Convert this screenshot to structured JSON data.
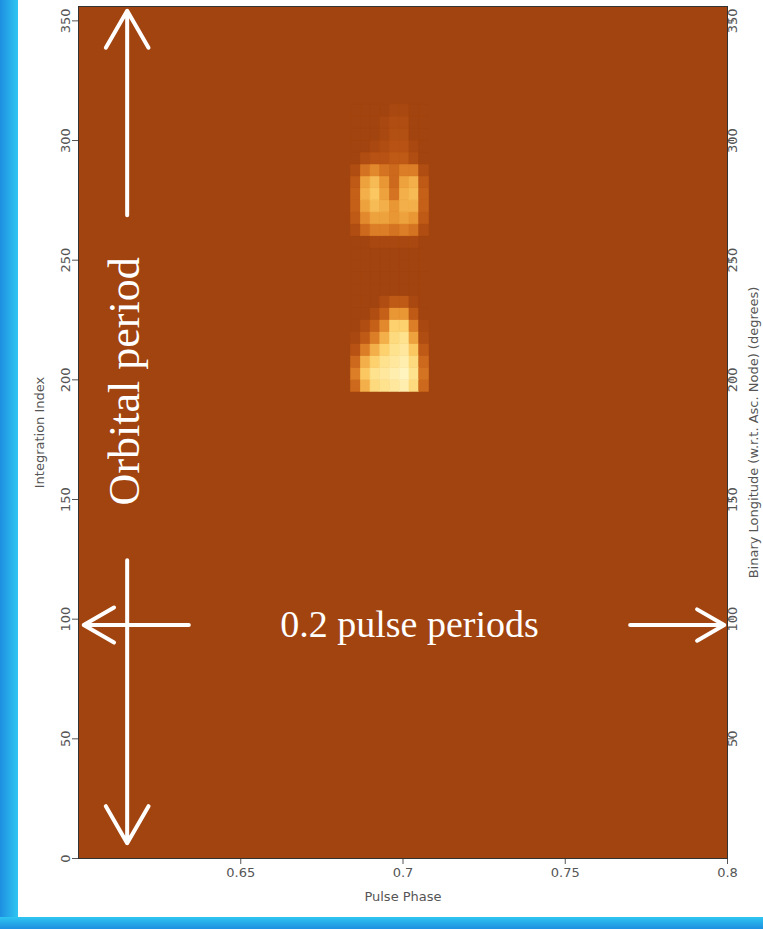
{
  "chart_data": {
    "type": "heatmap",
    "x_label": "Pulse Phase",
    "y_label": "Integration Index",
    "y2_label": "Binary Longitude (w.r.t. Asc. Node) (degrees)",
    "xlim": [
      0.6,
      0.8
    ],
    "xticks": [
      0.65,
      0.7,
      0.75,
      0.8
    ],
    "ylim": [
      0,
      356
    ],
    "yticks": [
      0,
      50,
      100,
      150,
      200,
      250,
      300,
      350
    ],
    "y2lim": [
      0,
      356
    ],
    "y2ticks": [
      50,
      100,
      150,
      200,
      250,
      300,
      350
    ],
    "x_bins": [
      0.684,
      0.687,
      0.69,
      0.693,
      0.696,
      0.699,
      0.702,
      0.705,
      0.708
    ],
    "y_bins": [
      195,
      200,
      205,
      210,
      215,
      220,
      225,
      230,
      235,
      240,
      245,
      250,
      255,
      260,
      265,
      270,
      275,
      280,
      285,
      290,
      295,
      300,
      305,
      310,
      315
    ],
    "z": [
      [
        0.3,
        0.6,
        0.8,
        0.85,
        0.9,
        0.95,
        0.8,
        0.3
      ],
      [
        0.4,
        0.7,
        0.85,
        0.9,
        0.95,
        1.0,
        0.85,
        0.35
      ],
      [
        0.3,
        0.6,
        0.75,
        0.85,
        0.9,
        0.95,
        0.8,
        0.3
      ],
      [
        0.15,
        0.4,
        0.6,
        0.75,
        0.85,
        0.9,
        0.7,
        0.2
      ],
      [
        0.05,
        0.2,
        0.4,
        0.6,
        0.8,
        0.85,
        0.55,
        0.1
      ],
      [
        0,
        0.1,
        0.25,
        0.45,
        0.75,
        0.75,
        0.4,
        0.05
      ],
      [
        0,
        0,
        0.1,
        0.25,
        0.5,
        0.5,
        0.2,
        0
      ],
      [
        0,
        0,
        0,
        0.1,
        0.2,
        0.2,
        0.05,
        0
      ],
      [
        0,
        0,
        0,
        0,
        0,
        0,
        0,
        0
      ],
      [
        0,
        0,
        0,
        0,
        0,
        0,
        0,
        0
      ],
      [
        0,
        0,
        0,
        0,
        0,
        0,
        0,
        0
      ],
      [
        0,
        0,
        0,
        0,
        0,
        0,
        0,
        0
      ],
      [
        0,
        0,
        0.05,
        0.05,
        0.05,
        0.05,
        0.05,
        0
      ],
      [
        0.1,
        0.3,
        0.4,
        0.4,
        0.35,
        0.4,
        0.35,
        0.1
      ],
      [
        0.2,
        0.45,
        0.55,
        0.55,
        0.5,
        0.55,
        0.5,
        0.2
      ],
      [
        0.25,
        0.55,
        0.65,
        0.6,
        0.5,
        0.6,
        0.6,
        0.25
      ],
      [
        0.25,
        0.6,
        0.7,
        0.55,
        0.35,
        0.6,
        0.65,
        0.25
      ],
      [
        0.2,
        0.55,
        0.65,
        0.5,
        0.3,
        0.55,
        0.6,
        0.2
      ],
      [
        0.1,
        0.35,
        0.45,
        0.35,
        0.3,
        0.4,
        0.4,
        0.1
      ],
      [
        0,
        0.1,
        0.15,
        0.15,
        0.2,
        0.2,
        0.1,
        0
      ],
      [
        0,
        0,
        0.05,
        0.1,
        0.15,
        0.15,
        0.05,
        0
      ],
      [
        0,
        0,
        0,
        0.05,
        0.12,
        0.12,
        0,
        0
      ],
      [
        0,
        0,
        0,
        0.05,
        0.1,
        0.1,
        0,
        0
      ],
      [
        0,
        0,
        0,
        0,
        0.05,
        0.05,
        0,
        0
      ]
    ],
    "zlim": [
      0,
      1
    ],
    "annotations": [
      "Orbital period",
      "0.2 pulse periods"
    ]
  }
}
